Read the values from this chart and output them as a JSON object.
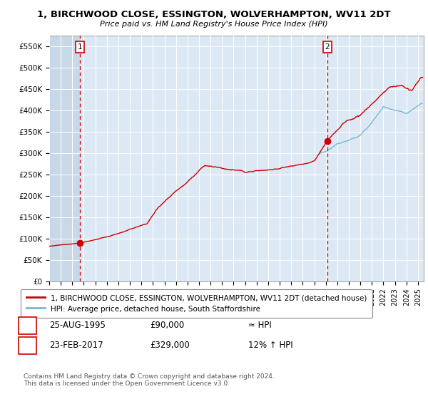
{
  "title": "1, BIRCHWOOD CLOSE, ESSINGTON, WOLVERHAMPTON, WV11 2DT",
  "subtitle": "Price paid vs. HM Land Registry's House Price Index (HPI)",
  "ylim": [
    0,
    575000
  ],
  "yticks": [
    0,
    50000,
    100000,
    150000,
    200000,
    250000,
    300000,
    350000,
    400000,
    450000,
    500000,
    550000
  ],
  "ytick_labels": [
    "£0",
    "£50K",
    "£100K",
    "£150K",
    "£200K",
    "£250K",
    "£300K",
    "£350K",
    "£400K",
    "£450K",
    "£500K",
    "£550K"
  ],
  "xlim_start": 1993,
  "xlim_end": 2025.5,
  "sale1_date": 1995.65,
  "sale1_price": 90000,
  "sale2_date": 2017.14,
  "sale2_price": 329000,
  "hpi_color": "#7ab8d9",
  "price_color": "#cc0000",
  "sale_dot_color": "#cc0000",
  "vline_color": "#cc0000",
  "chart_bg": "#dce9f5",
  "grid_color": "#ffffff",
  "hatch_color": "#c8d8e8",
  "legend_label_price": "1, BIRCHWOOD CLOSE, ESSINGTON, WOLVERHAMPTON, WV11 2DT (detached house)",
  "legend_label_hpi": "HPI: Average price, detached house, South Staffordshire",
  "footer": "Contains HM Land Registry data © Crown copyright and database right 2024.\nThis data is licensed under the Open Government Licence v3.0.",
  "table_row1": [
    "1",
    "25-AUG-1995",
    "£90,000",
    "≈ HPI"
  ],
  "table_row2": [
    "2",
    "23-FEB-2017",
    "£329,000",
    "12% ↑ HPI"
  ]
}
